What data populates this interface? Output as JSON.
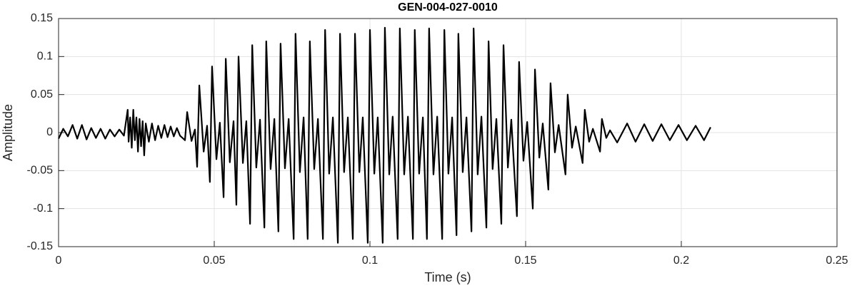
{
  "chart_data": {
    "type": "line",
    "title": "GEN-004-027-0010",
    "xlabel": "Time (s)",
    "ylabel": "Amplitude",
    "x": [
      0,
      0.0015,
      0.003,
      0.0045,
      0.006,
      0.0075,
      0.009,
      0.0105,
      0.012,
      0.0135,
      0.015,
      0.0165,
      0.018,
      0.0195,
      0.021,
      0.0222,
      0.0225,
      0.023,
      0.0235,
      0.024,
      0.0245,
      0.025,
      0.0255,
      0.026,
      0.0265,
      0.027,
      0.0275,
      0.028,
      0.029,
      0.03,
      0.031,
      0.032,
      0.033,
      0.034,
      0.035,
      0.036,
      0.037,
      0.038,
      0.039,
      0.0406,
      0.0413,
      0.0427,
      0.0438,
      0.0445,
      0.0452,
      0.0466,
      0.0477,
      0.0486,
      0.0493,
      0.0507,
      0.0518,
      0.053,
      0.0537,
      0.055,
      0.0562,
      0.0571,
      0.0578,
      0.0592,
      0.0603,
      0.0615,
      0.0622,
      0.0635,
      0.0647,
      0.0661,
      0.0667,
      0.0681,
      0.0693,
      0.0706,
      0.0713,
      0.0727,
      0.0739,
      0.0755,
      0.0761,
      0.0775,
      0.0787,
      0.08,
      0.0807,
      0.0821,
      0.0833,
      0.0849,
      0.0856,
      0.0869,
      0.0881,
      0.0897,
      0.0904,
      0.0917,
      0.0929,
      0.0945,
      0.0952,
      0.0966,
      0.0977,
      0.0993,
      0.1,
      0.1014,
      0.1025,
      0.1041,
      0.1048,
      0.1062,
      0.1073,
      0.1089,
      0.1096,
      0.111,
      0.1122,
      0.1138,
      0.1144,
      0.1158,
      0.117,
      0.1183,
      0.119,
      0.1204,
      0.1216,
      0.1232,
      0.1239,
      0.1252,
      0.1264,
      0.1278,
      0.1284,
      0.1298,
      0.131,
      0.1326,
      0.1333,
      0.1346,
      0.1358,
      0.1374,
      0.1381,
      0.1394,
      0.1406,
      0.1422,
      0.1429,
      0.1443,
      0.1454,
      0.1472,
      0.1479,
      0.1493,
      0.1505,
      0.1523,
      0.153,
      0.1544,
      0.1555,
      0.1573,
      0.158,
      0.1594,
      0.1606,
      0.1628,
      0.1635,
      0.1649,
      0.1661,
      0.1683,
      0.169,
      0.1704,
      0.1716,
      0.1739,
      0.1745,
      0.1759,
      0.1771,
      0.1794,
      0.1826,
      0.1853,
      0.1881,
      0.1908,
      0.1936,
      0.1963,
      0.1991,
      0.2018,
      0.2046,
      0.2073,
      0.2094
    ],
    "values": [
      -0.008,
      0.005,
      -0.005,
      0.01,
      -0.008,
      0.01,
      -0.009,
      0.006,
      -0.007,
      0.005,
      -0.008,
      0.004,
      -0.005,
      0.004,
      -0.004,
      0.03,
      -0.012,
      0.02,
      -0.02,
      0.03,
      -0.01,
      0.02,
      -0.025,
      0.018,
      -0.018,
      0.015,
      -0.03,
      0.012,
      -0.012,
      0.012,
      -0.01,
      0.009,
      -0.007,
      0.01,
      -0.006,
      0.008,
      -0.005,
      0.006,
      -0.004,
      -0.01,
      0.027,
      -0.011,
      0.004,
      -0.045,
      0.062,
      -0.025,
      0.009,
      -0.065,
      0.087,
      -0.035,
      0.013,
      -0.085,
      0.097,
      -0.039,
      0.015,
      -0.095,
      0.1,
      -0.04,
      0.015,
      -0.12,
      0.115,
      -0.046,
      0.017,
      -0.125,
      0.12,
      -0.048,
      0.018,
      -0.13,
      0.117,
      -0.047,
      0.018,
      -0.14,
      0.13,
      -0.052,
      0.02,
      -0.14,
      0.12,
      -0.048,
      0.018,
      -0.14,
      0.135,
      -0.054,
      0.02,
      -0.145,
      0.13,
      -0.052,
      0.02,
      -0.14,
      0.13,
      -0.052,
      0.02,
      -0.145,
      0.135,
      -0.054,
      0.02,
      -0.145,
      0.138,
      -0.055,
      0.021,
      -0.14,
      0.137,
      -0.055,
      0.021,
      -0.14,
      0.135,
      -0.054,
      0.02,
      -0.14,
      0.137,
      -0.055,
      0.021,
      -0.14,
      0.135,
      -0.054,
      0.02,
      -0.135,
      0.13,
      -0.052,
      0.02,
      -0.13,
      0.137,
      -0.055,
      0.021,
      -0.125,
      0.12,
      -0.048,
      0.018,
      -0.12,
      0.115,
      -0.046,
      0.017,
      -0.11,
      0.093,
      -0.037,
      0.014,
      -0.1,
      0.083,
      -0.033,
      0.012,
      -0.075,
      0.065,
      -0.026,
      0.01,
      -0.055,
      0.05,
      -0.02,
      0.008,
      -0.04,
      0.03,
      -0.012,
      0.005,
      -0.025,
      0.018,
      -0.007,
      0.003,
      -0.013,
      0.012,
      -0.012,
      0.011,
      -0.011,
      0.011,
      -0.01,
      0.01,
      -0.01,
      0.009,
      -0.01,
      0.007
    ],
    "color": "#000000",
    "xlim": [
      0,
      0.25
    ],
    "xticks": [
      0,
      0.05,
      0.1,
      0.15,
      0.2,
      0.25
    ],
    "ylim": [
      -0.15,
      0.15
    ],
    "yticks": [
      -0.15,
      -0.1,
      -0.05,
      0,
      0.05,
      0.1,
      0.15
    ],
    "grid": true
  }
}
